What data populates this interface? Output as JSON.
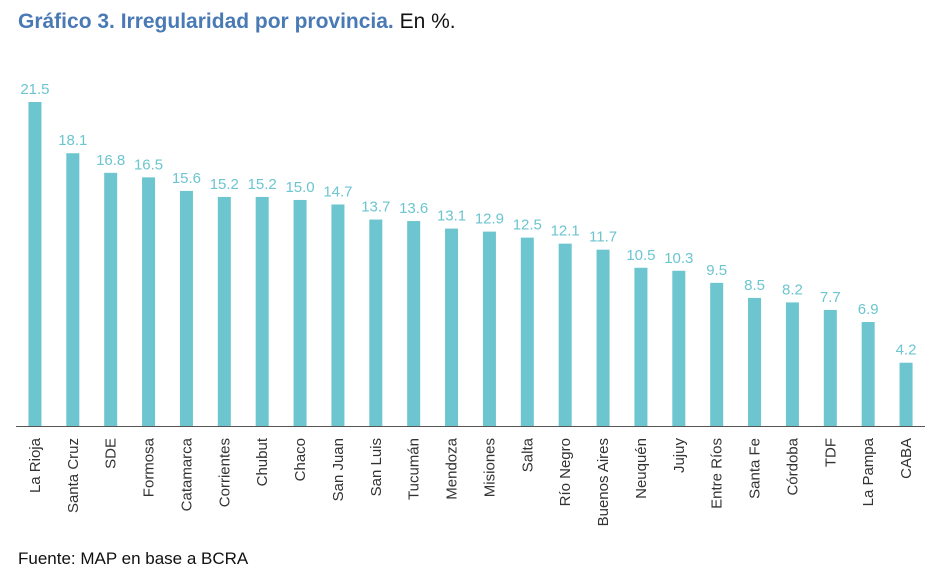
{
  "title": "Gráfico 3. Irregularidad por provincia.",
  "subtitle": "En %.",
  "source": "Fuente: MAP en base a BCRA",
  "colors": {
    "bar": "#6cc5cf",
    "label": "#6cc5cf",
    "axis": "#555555",
    "title": "#4a7ab5"
  },
  "chart_data": {
    "type": "bar",
    "categories": [
      "La Rioja",
      "Santa Cruz",
      "SDE",
      "Formosa",
      "Catamarca",
      "Corrientes",
      "Chubut",
      "Chaco",
      "San Juan",
      "San Luis",
      "Tucumán",
      "Mendoza",
      "Misiones",
      "Salta",
      "Río Negro",
      "Buenos Aires",
      "Neuquén",
      "Jujuy",
      "Entre Ríos",
      "Santa Fe",
      "Córdoba",
      "TDF",
      "La Pampa",
      "CABA"
    ],
    "values": [
      21.5,
      18.1,
      16.8,
      16.5,
      15.6,
      15.2,
      15.2,
      15.0,
      14.7,
      13.7,
      13.6,
      13.1,
      12.9,
      12.5,
      12.1,
      11.7,
      10.5,
      10.3,
      9.5,
      8.5,
      8.2,
      7.7,
      6.9,
      4.2
    ],
    "value_labels": [
      "21.5",
      "18.1",
      "16.8",
      "16.5",
      "15.6",
      "15.2",
      "15.2",
      "15.0",
      "14.7",
      "13.7",
      "13.6",
      "13.1",
      "12.9",
      "12.5",
      "12.1",
      "11.7",
      "10.5",
      "10.3",
      "9.5",
      "8.5",
      "8.2",
      "7.7",
      "6.9",
      "4.2"
    ],
    "ylim": [
      0,
      21.5
    ],
    "grid": false,
    "legend": "none"
  }
}
